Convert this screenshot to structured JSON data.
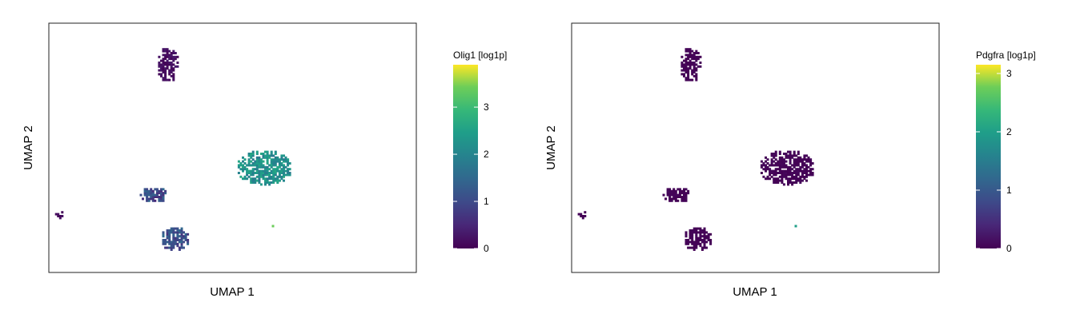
{
  "chart_data": [
    {
      "type": "scatter",
      "xlabel": "UMAP 1",
      "ylabel": "UMAP 2",
      "colorbar": {
        "label": "Olig1 [log1p]",
        "range": [
          0,
          3.9
        ],
        "ticks": [
          0,
          1,
          2,
          3
        ],
        "colormap": "viridis"
      },
      "clusters": [
        {
          "center": [
            -3.2,
            8.4
          ],
          "spread": [
            0.55,
            0.9
          ],
          "value": 0.15,
          "jitter": 0.15
        },
        {
          "center": [
            -3.9,
            1.6
          ],
          "spread": [
            0.75,
            0.4
          ],
          "value": 1.0,
          "jitter": 0.5
        },
        {
          "center": [
            -2.9,
            -0.7
          ],
          "spread": [
            0.75,
            0.65
          ],
          "value": 1.05,
          "jitter": 0.45
        },
        {
          "center": [
            1.5,
            3.0
          ],
          "spread": [
            1.35,
            0.95
          ],
          "value": 2.2,
          "jitter": 0.45
        },
        {
          "center": [
            -8.5,
            0.6
          ],
          "spread": [
            0.2,
            0.2
          ],
          "value": 0.1,
          "jitter": 0.1
        },
        {
          "center": [
            1.9,
            -0.1
          ],
          "spread": [
            0.08,
            0.12
          ],
          "value": 3.3,
          "jitter": 0.5
        }
      ]
    },
    {
      "type": "scatter",
      "xlabel": "UMAP 1",
      "ylabel": "UMAP 2",
      "colorbar": {
        "label": "Pdgfra [log1p]",
        "range": [
          0,
          3.15
        ],
        "ticks": [
          0,
          1,
          2,
          3
        ],
        "colormap": "viridis"
      },
      "clusters": [
        {
          "center": [
            -3.2,
            8.4
          ],
          "spread": [
            0.55,
            0.9
          ],
          "value": 0.02,
          "jitter": 0.04
        },
        {
          "center": [
            -3.9,
            1.6
          ],
          "spread": [
            0.75,
            0.4
          ],
          "value": 0.03,
          "jitter": 0.05
        },
        {
          "center": [
            -2.9,
            -0.7
          ],
          "spread": [
            0.75,
            0.65
          ],
          "value": 0.02,
          "jitter": 0.04
        },
        {
          "center": [
            1.5,
            3.0
          ],
          "spread": [
            1.35,
            0.95
          ],
          "value": 0.03,
          "jitter": 0.05
        },
        {
          "center": [
            -8.5,
            0.6
          ],
          "spread": [
            0.2,
            0.2
          ],
          "value": 0.02,
          "jitter": 0.03
        },
        {
          "center": [
            1.9,
            -0.1
          ],
          "spread": [
            0.08,
            0.12
          ],
          "value": 1.9,
          "jitter": 0.5
        }
      ],
      "xlim": [
        -9,
        9
      ],
      "ylim": [
        -2.5,
        10.5
      ]
    }
  ],
  "axes": {
    "xlim": [
      -9,
      9
    ],
    "ylim": [
      -2.5,
      10.5
    ]
  }
}
